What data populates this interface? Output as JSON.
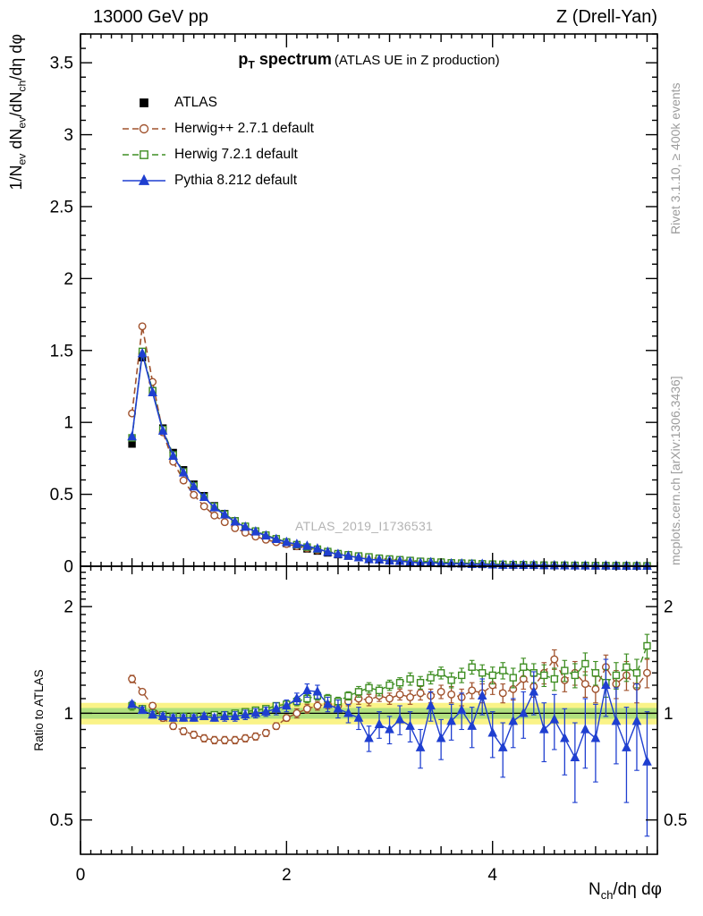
{
  "header": {
    "left": "13000 GeV pp",
    "right": "Z (Drell-Yan)"
  },
  "title": {
    "main_parts": [
      {
        "t": "p"
      },
      {
        "t": "T",
        "sub": true
      },
      {
        "t": " spectrum"
      }
    ],
    "paren": "(ATLAS UE in Z production)"
  },
  "axes": {
    "ylabel_parts": [
      {
        "t": "1/N"
      },
      {
        "t": "ev",
        "sub": true
      },
      {
        "t": " dN"
      },
      {
        "t": "ev",
        "sub": true
      },
      {
        "t": "/dN"
      },
      {
        "t": "ch",
        "sub": true
      },
      {
        "t": "/dη dφ"
      }
    ],
    "ratio_ylabel": "Ratio to ATLAS",
    "xlabel_parts": [
      {
        "t": "N"
      },
      {
        "t": "ch",
        "sub": true
      },
      {
        "t": "/dη dφ"
      }
    ]
  },
  "side_notes": {
    "top_right": "Rivet 3.1.10, ≥ 400k events",
    "bottom_right": "mcplots.cern.ch [arXiv:1306.3436]"
  },
  "watermark": "ATLAS_2019_I1736531",
  "chart_data": {
    "type": "line",
    "title": "p_T spectrum (ATLAS UE in Z production)",
    "xlabel": "N_ch/dη dφ",
    "ylabel": "1/N_ev dN_ev/dN_ch/dη dφ",
    "ratio_ylabel": "Ratio to ATLAS",
    "legend_position": "top-left",
    "grid": false,
    "x_range": [
      0,
      5.6
    ],
    "main_y_range": [
      0,
      3.7
    ],
    "ratio_y_range": [
      0.4,
      2.6
    ],
    "ratio_y_log": true,
    "x_ticks": {
      "major": [
        0,
        2,
        4
      ],
      "major_labels": [
        "0",
        "2",
        "4"
      ],
      "medium_step": 0.5,
      "minor_step": 0.1
    },
    "main_y_ticks": {
      "major": [
        0,
        0.5,
        1,
        1.5,
        2,
        2.5,
        3,
        3.5
      ],
      "labels": [
        "0",
        "0.5",
        "1",
        "1.5",
        "2",
        "2.5",
        "3",
        "3.5"
      ],
      "minor_step": 0.1
    },
    "ratio_y_ticks": {
      "major": [
        0.5,
        1,
        2
      ],
      "labels": [
        "0.5",
        "1",
        "2"
      ],
      "minor": [
        0.6,
        0.7,
        0.8,
        0.9,
        1.1,
        1.2,
        1.3,
        1.4,
        1.5,
        1.6,
        1.7,
        1.8,
        1.9,
        2.1,
        2.2,
        2.3,
        2.4,
        2.5
      ]
    },
    "band": {
      "outer_halfwidth": 0.07,
      "inner_halfwidth": 0.035,
      "outer_color": "#FAF388",
      "inner_color": "#B0E07E"
    },
    "x": [
      0.5,
      0.6,
      0.7,
      0.8,
      0.9,
      1.0,
      1.1,
      1.2,
      1.3,
      1.4,
      1.5,
      1.6,
      1.7,
      1.8,
      1.9,
      2.0,
      2.1,
      2.2,
      2.3,
      2.4,
      2.5,
      2.6,
      2.7,
      2.8,
      2.9,
      3.0,
      3.1,
      3.2,
      3.3,
      3.4,
      3.5,
      3.6,
      3.7,
      3.8,
      3.9,
      4.0,
      4.1,
      4.2,
      4.3,
      4.4,
      4.5,
      4.6,
      4.7,
      4.8,
      4.9,
      5.0,
      5.1,
      5.2,
      5.3,
      5.4,
      5.5
    ],
    "series": [
      {
        "name": "ATLAS",
        "color": "#000000",
        "line": "none",
        "marker": "square",
        "marker_filled": true,
        "is_data": true,
        "values": [
          0.85,
          1.45,
          1.22,
          0.96,
          0.79,
          0.67,
          0.57,
          0.49,
          0.42,
          0.365,
          0.315,
          0.275,
          0.24,
          0.21,
          0.182,
          0.159,
          0.139,
          0.121,
          0.106,
          0.093,
          0.081,
          0.071,
          0.062,
          0.055,
          0.048,
          0.042,
          0.037,
          0.032,
          0.028,
          0.025,
          0.022,
          0.019,
          0.017,
          0.015,
          0.013,
          0.0115,
          0.01,
          0.009,
          0.008,
          0.007,
          0.006,
          0.0055,
          0.005,
          0.0044,
          0.0039,
          0.0035,
          0.0031,
          0.0027,
          0.0024,
          0.0021,
          0.0019
        ]
      },
      {
        "name": "Herwig++ 2.7.1 default",
        "color": "#A0522D",
        "line": "dashed",
        "marker": "circle",
        "marker_filled": false,
        "is_data": false,
        "ratio_to_data": [
          1.25,
          1.15,
          1.05,
          0.97,
          0.92,
          0.89,
          0.87,
          0.85,
          0.84,
          0.84,
          0.84,
          0.85,
          0.86,
          0.88,
          0.92,
          0.97,
          1.0,
          1.03,
          1.05,
          1.06,
          1.05,
          1.08,
          1.1,
          1.09,
          1.12,
          1.1,
          1.13,
          1.11,
          1.14,
          1.12,
          1.15,
          1.13,
          1.11,
          1.16,
          1.14,
          1.2,
          1.14,
          1.17,
          1.25,
          1.19,
          1.3,
          1.42,
          1.24,
          1.3,
          1.21,
          1.17,
          1.35,
          1.21,
          1.28,
          1.19,
          1.3
        ],
        "ratio_err": [
          0.03,
          0.02,
          0.02,
          0.02,
          0.02,
          0.02,
          0.02,
          0.02,
          0.02,
          0.02,
          0.02,
          0.02,
          0.02,
          0.02,
          0.02,
          0.02,
          0.03,
          0.03,
          0.03,
          0.03,
          0.03,
          0.03,
          0.04,
          0.04,
          0.04,
          0.04,
          0.04,
          0.05,
          0.05,
          0.05,
          0.05,
          0.06,
          0.06,
          0.06,
          0.07,
          0.07,
          0.07,
          0.08,
          0.08,
          0.08,
          0.09,
          0.09,
          0.09,
          0.1,
          0.1,
          0.1,
          0.11,
          0.11,
          0.12,
          0.12,
          0.12
        ]
      },
      {
        "name": "Herwig 7.2.1 default",
        "color": "#3F8E23",
        "line": "dashed",
        "marker": "square",
        "marker_filled": false,
        "is_data": false,
        "ratio_to_data": [
          1.05,
          1.03,
          1.0,
          0.99,
          0.98,
          0.98,
          0.98,
          0.98,
          0.99,
          0.99,
          1.0,
          1.01,
          1.02,
          1.03,
          1.05,
          1.06,
          1.08,
          1.1,
          1.12,
          1.1,
          1.08,
          1.12,
          1.15,
          1.18,
          1.16,
          1.2,
          1.22,
          1.25,
          1.22,
          1.26,
          1.3,
          1.24,
          1.28,
          1.35,
          1.3,
          1.28,
          1.32,
          1.26,
          1.35,
          1.3,
          1.28,
          1.25,
          1.32,
          1.28,
          1.38,
          1.3,
          1.22,
          1.28,
          1.35,
          1.3,
          1.55
        ],
        "ratio_err": [
          0.03,
          0.02,
          0.02,
          0.02,
          0.02,
          0.02,
          0.02,
          0.02,
          0.02,
          0.02,
          0.02,
          0.02,
          0.02,
          0.02,
          0.02,
          0.02,
          0.03,
          0.03,
          0.03,
          0.03,
          0.03,
          0.03,
          0.04,
          0.04,
          0.04,
          0.04,
          0.04,
          0.05,
          0.05,
          0.05,
          0.05,
          0.06,
          0.06,
          0.06,
          0.07,
          0.07,
          0.07,
          0.08,
          0.08,
          0.08,
          0.09,
          0.09,
          0.09,
          0.1,
          0.1,
          0.1,
          0.11,
          0.11,
          0.12,
          0.12,
          0.12
        ]
      },
      {
        "name": "Pythia 8.212 default",
        "color": "#1F3FD0",
        "line": "solid",
        "marker": "triangle",
        "marker_filled": true,
        "is_data": false,
        "ratio_to_data": [
          1.06,
          1.02,
          0.99,
          0.98,
          0.97,
          0.97,
          0.97,
          0.98,
          0.97,
          0.98,
          0.98,
          0.99,
          1.0,
          1.01,
          1.03,
          1.05,
          1.1,
          1.16,
          1.15,
          1.06,
          1.03,
          1.0,
          0.97,
          0.85,
          0.93,
          0.9,
          0.96,
          0.92,
          0.8,
          1.05,
          0.85,
          0.95,
          1.02,
          0.92,
          1.12,
          0.88,
          0.8,
          0.95,
          1.0,
          1.15,
          0.9,
          0.96,
          0.85,
          0.75,
          0.9,
          0.85,
          1.2,
          0.95,
          0.8,
          0.95,
          0.73
        ],
        "ratio_err": [
          0.02,
          0.02,
          0.02,
          0.02,
          0.02,
          0.02,
          0.02,
          0.02,
          0.02,
          0.03,
          0.03,
          0.03,
          0.03,
          0.03,
          0.04,
          0.04,
          0.04,
          0.05,
          0.05,
          0.05,
          0.06,
          0.06,
          0.07,
          0.07,
          0.08,
          0.08,
          0.09,
          0.09,
          0.1,
          0.1,
          0.11,
          0.11,
          0.12,
          0.12,
          0.13,
          0.13,
          0.14,
          0.15,
          0.15,
          0.16,
          0.17,
          0.17,
          0.18,
          0.19,
          0.2,
          0.21,
          0.22,
          0.23,
          0.24,
          0.26,
          0.28
        ]
      }
    ]
  }
}
